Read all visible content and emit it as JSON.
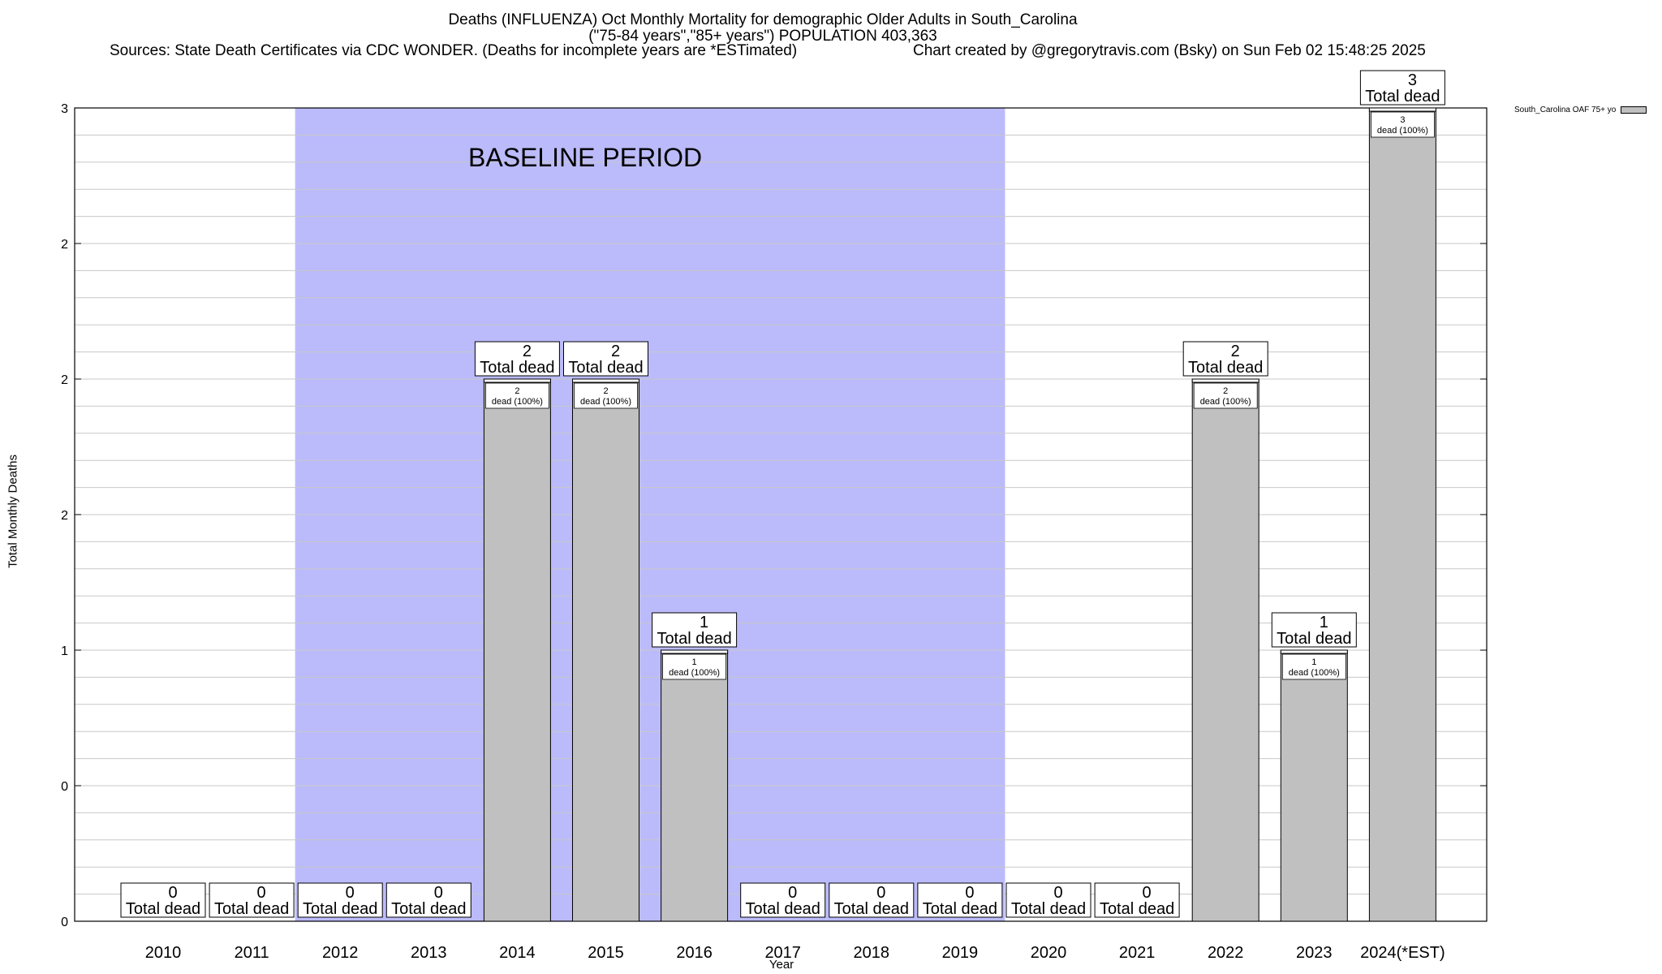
{
  "header": {
    "title_line1": "Deaths (INFLUENZA) Oct Monthly Mortality for demographic Older Adults in South_Carolina",
    "title_line2": "(\"75-84 years\",\"85+ years\") POPULATION 403,363",
    "sources": "Sources: State Death Certificates via CDC WONDER. (Deaths for incomplete years are *ESTimated)",
    "credit": "Chart created by @gregorytravis.com (Bsky) on Sun Feb 02 15:48:25 2025"
  },
  "legend": {
    "label": "South_Carolina OAF 75+ yo"
  },
  "baseline_label": "BASELINE PERIOD",
  "colors": {
    "bar": "#c0c0c0",
    "baseline": "#bbbbfb",
    "grid": "#c8c8c8"
  },
  "chart_data": {
    "type": "bar",
    "xlabel": "Year",
    "ylabel": "Total Monthly Deaths",
    "ylim": [
      0,
      3
    ],
    "yticks": [
      0,
      0.5,
      1,
      1.5,
      2,
      2.5,
      3
    ],
    "ytick_labels": [
      "0",
      "0",
      "1",
      "2",
      "2",
      "2",
      "3"
    ],
    "categories": [
      "2010",
      "2011",
      "2012",
      "2013",
      "2014",
      "2015",
      "2016",
      "2017",
      "2018",
      "2019",
      "2020",
      "2021",
      "2022",
      "2023",
      "2024(*EST)"
    ],
    "series": [
      {
        "name": "South_Carolina OAF 75+ yo",
        "values": [
          0,
          0,
          0,
          0,
          2,
          2,
          1,
          0,
          0,
          0,
          0,
          0,
          2,
          1,
          3
        ]
      }
    ],
    "total_label": "Total dead",
    "segment_label": "dead (100%)",
    "baseline_period": [
      "2012",
      "2019"
    ],
    "grid": true,
    "legend_position": "top-right"
  }
}
